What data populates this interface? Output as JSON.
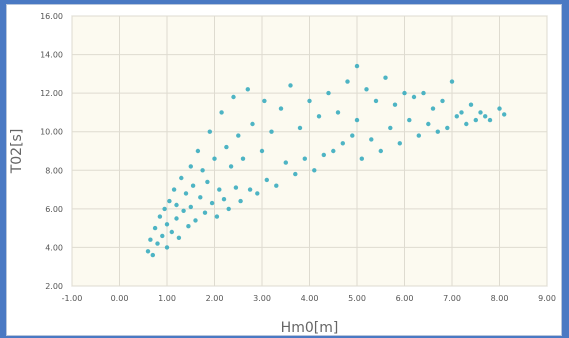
{
  "chart_data": {
    "type": "scatter",
    "title": "",
    "xlabel": "Hm0[m]",
    "ylabel": "T02[s]",
    "xlim": [
      -1,
      9
    ],
    "ylim": [
      2,
      16
    ],
    "x_ticks": [
      "-1.00",
      "0.00",
      "1.00",
      "2.00",
      "3.00",
      "4.00",
      "5.00",
      "6.00",
      "7.00",
      "8.00",
      "9.00"
    ],
    "y_ticks": [
      "2.00",
      "4.00",
      "6.00",
      "8.00",
      "10.00",
      "12.00",
      "14.00",
      "16.00"
    ],
    "grid": true,
    "marker_color": "#3aacbf",
    "plot_background": "#fcfaf0",
    "grid_color": "#dedbd0",
    "series": [
      {
        "points": [
          [
            0.6,
            3.8
          ],
          [
            0.65,
            4.4
          ],
          [
            0.7,
            3.6
          ],
          [
            0.75,
            5.0
          ],
          [
            0.8,
            4.2
          ],
          [
            0.85,
            5.6
          ],
          [
            0.9,
            4.6
          ],
          [
            0.95,
            6.0
          ],
          [
            1.0,
            4.0
          ],
          [
            1.0,
            5.2
          ],
          [
            1.05,
            6.4
          ],
          [
            1.1,
            4.8
          ],
          [
            1.15,
            7.0
          ],
          [
            1.2,
            5.5
          ],
          [
            1.2,
            6.2
          ],
          [
            1.25,
            4.5
          ],
          [
            1.3,
            7.6
          ],
          [
            1.35,
            5.9
          ],
          [
            1.4,
            6.8
          ],
          [
            1.45,
            5.1
          ],
          [
            1.5,
            8.2
          ],
          [
            1.5,
            6.1
          ],
          [
            1.55,
            7.2
          ],
          [
            1.6,
            5.4
          ],
          [
            1.65,
            9.0
          ],
          [
            1.7,
            6.6
          ],
          [
            1.75,
            8.0
          ],
          [
            1.8,
            5.8
          ],
          [
            1.85,
            7.4
          ],
          [
            1.9,
            10.0
          ],
          [
            1.95,
            6.3
          ],
          [
            2.0,
            8.6
          ],
          [
            2.05,
            5.6
          ],
          [
            2.1,
            7.0
          ],
          [
            2.15,
            11.0
          ],
          [
            2.2,
            6.5
          ],
          [
            2.25,
            9.2
          ],
          [
            2.3,
            6.0
          ],
          [
            2.35,
            8.2
          ],
          [
            2.4,
            11.8
          ],
          [
            2.45,
            7.1
          ],
          [
            2.5,
            9.8
          ],
          [
            2.55,
            6.4
          ],
          [
            2.6,
            8.6
          ],
          [
            2.7,
            12.2
          ],
          [
            2.75,
            7.0
          ],
          [
            2.8,
            10.4
          ],
          [
            2.9,
            6.8
          ],
          [
            3.0,
            9.0
          ],
          [
            3.05,
            11.6
          ],
          [
            3.1,
            7.5
          ],
          [
            3.2,
            10.0
          ],
          [
            3.3,
            7.2
          ],
          [
            3.4,
            11.2
          ],
          [
            3.5,
            8.4
          ],
          [
            3.6,
            12.4
          ],
          [
            3.7,
            7.8
          ],
          [
            3.8,
            10.2
          ],
          [
            3.9,
            8.6
          ],
          [
            4.0,
            11.6
          ],
          [
            4.1,
            8.0
          ],
          [
            4.2,
            10.8
          ],
          [
            4.3,
            8.8
          ],
          [
            4.4,
            12.0
          ],
          [
            4.5,
            9.0
          ],
          [
            4.6,
            11.0
          ],
          [
            4.7,
            9.4
          ],
          [
            4.8,
            12.6
          ],
          [
            4.9,
            9.8
          ],
          [
            5.0,
            13.4
          ],
          [
            5.0,
            10.6
          ],
          [
            5.1,
            8.6
          ],
          [
            5.2,
            12.2
          ],
          [
            5.3,
            9.6
          ],
          [
            5.4,
            11.6
          ],
          [
            5.5,
            9.0
          ],
          [
            5.6,
            12.8
          ],
          [
            5.7,
            10.2
          ],
          [
            5.8,
            11.4
          ],
          [
            5.9,
            9.4
          ],
          [
            6.0,
            12.0
          ],
          [
            6.1,
            10.6
          ],
          [
            6.2,
            11.8
          ],
          [
            6.3,
            9.8
          ],
          [
            6.4,
            12.0
          ],
          [
            6.5,
            10.4
          ],
          [
            6.6,
            11.2
          ],
          [
            6.7,
            10.0
          ],
          [
            6.8,
            11.6
          ],
          [
            6.9,
            10.2
          ],
          [
            7.0,
            12.6
          ],
          [
            7.1,
            10.8
          ],
          [
            7.2,
            11.0
          ],
          [
            7.3,
            10.4
          ],
          [
            7.4,
            11.4
          ],
          [
            7.5,
            10.6
          ],
          [
            7.6,
            11.0
          ],
          [
            7.7,
            10.8
          ],
          [
            7.8,
            10.6
          ],
          [
            8.0,
            11.2
          ],
          [
            8.1,
            10.9
          ]
        ]
      }
    ]
  }
}
